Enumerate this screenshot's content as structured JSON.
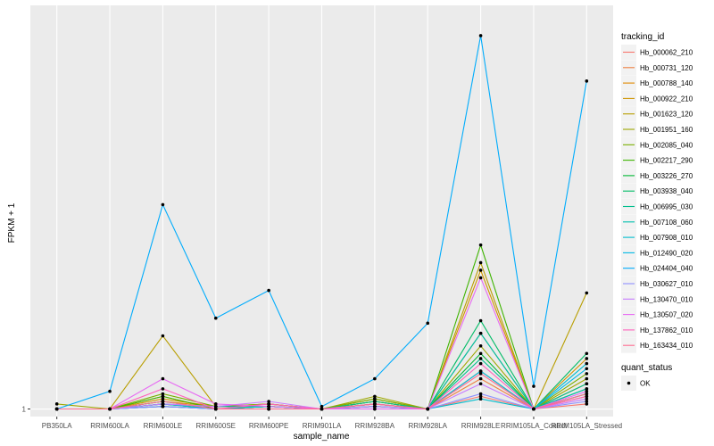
{
  "chart_data": {
    "type": "line",
    "title": "",
    "xlabel": "sample_name",
    "ylabel": "FPKM + 1",
    "categories": [
      "PB350LA",
      "RRIM600LA",
      "RRIM600LE",
      "RRIM600SE",
      "RRIM600PE",
      "RRIM901LA",
      "RRIM928BA",
      "RRIM928LA",
      "RRIM928LE",
      "RRIM105LA_Control",
      "RRIM105LA_Stressed"
    ],
    "y_tick_labels": [
      {
        "value": 1,
        "label": "1"
      }
    ],
    "ylim": [
      0.97,
      2.6
    ],
    "grid": true,
    "legend_position": "right",
    "legend_title": "tracking_id",
    "point_legend_title": "quant_status",
    "point_legend_labels": [
      "OK"
    ],
    "series": [
      {
        "name": "Hb_000062_210",
        "color": "#F8766D",
        "values": [
          1,
          1,
          1.01,
          1,
          1,
          1,
          1.01,
          1,
          1.05,
          1,
          1.02
        ]
      },
      {
        "name": "Hb_000731_120",
        "color": "#EE8043",
        "values": [
          1,
          1,
          1.02,
          1,
          1.01,
          1,
          1.02,
          1,
          1.12,
          1,
          1.05
        ]
      },
      {
        "name": "Hb_000788_140",
        "color": "#E18A00",
        "values": [
          1,
          1,
          1.03,
          1.01,
          1.02,
          1,
          1.03,
          1,
          1.15,
          1,
          1.1
        ]
      },
      {
        "name": "Hb_000922_210",
        "color": "#CF9400",
        "values": [
          1,
          1,
          1.04,
          1.01,
          1.01,
          1,
          1.03,
          1,
          1.55,
          1,
          1.2
        ]
      },
      {
        "name": "Hb_001623_120",
        "color": "#B89E00",
        "values": [
          1,
          1,
          1.29,
          1.01,
          1.02,
          1,
          1.04,
          1,
          1.58,
          1,
          1.46
        ]
      },
      {
        "name": "Hb_001951_160",
        "color": "#9DA700",
        "values": [
          1.02,
          1,
          1.05,
          1,
          1.01,
          1,
          1.05,
          1,
          1.25,
          1,
          1.12
        ]
      },
      {
        "name": "Hb_002085_040",
        "color": "#79AF00",
        "values": [
          1,
          1,
          1.06,
          1.01,
          1.02,
          1,
          1.04,
          1,
          1.3,
          1,
          1.14
        ]
      },
      {
        "name": "Hb_002217_290",
        "color": "#3EB400",
        "values": [
          1,
          1,
          1.05,
          1,
          1.01,
          1,
          1.03,
          1,
          1.65,
          1,
          1.08
        ]
      },
      {
        "name": "Hb_003226_270",
        "color": "#00B835",
        "values": [
          1,
          1,
          1.02,
          1,
          1,
          1,
          1.01,
          1,
          1.22,
          1,
          1.06
        ]
      },
      {
        "name": "Hb_003938_040",
        "color": "#00BC66",
        "values": [
          1,
          1,
          1.03,
          1,
          1.01,
          1,
          1.02,
          1,
          1.35,
          1,
          1.22
        ]
      },
      {
        "name": "Hb_006995_030",
        "color": "#00BE8D",
        "values": [
          1,
          1,
          1.02,
          1.01,
          1.01,
          1,
          1.03,
          1,
          1.2,
          1,
          1.1
        ]
      },
      {
        "name": "Hb_007108_060",
        "color": "#00BFAF",
        "values": [
          1,
          1,
          1.01,
          1,
          1,
          1,
          1.01,
          1,
          1.3,
          1,
          1.08
        ]
      },
      {
        "name": "Hb_007908_010",
        "color": "#00BDCD",
        "values": [
          1,
          1,
          1.02,
          1,
          1.01,
          1,
          1.02,
          1,
          1.04,
          1,
          1.18
        ]
      },
      {
        "name": "Hb_012490_020",
        "color": "#00B8E5",
        "values": [
          1,
          1,
          1.01,
          1,
          1,
          1,
          1.01,
          1,
          1.15,
          1,
          1.16
        ]
      },
      {
        "name": "Hb_024404_040",
        "color": "#00ACFC",
        "values": [
          1,
          1.07,
          1.81,
          1.36,
          1.47,
          1.01,
          1.12,
          1.34,
          2.48,
          1.09,
          2.3
        ]
      },
      {
        "name": "Hb_030627_010",
        "color": "#8F91FF",
        "values": [
          1,
          1,
          1.01,
          1,
          1,
          1,
          1,
          1,
          1.06,
          1,
          1.03
        ]
      },
      {
        "name": "Hb_130470_010",
        "color": "#C77CFF",
        "values": [
          1,
          1,
          1.02,
          1.01,
          1.03,
          1,
          1.01,
          1,
          1.1,
          1,
          1.04
        ]
      },
      {
        "name": "Hb_130507_020",
        "color": "#E76BF3",
        "values": [
          1,
          1,
          1.12,
          1.02,
          1.01,
          1,
          1,
          1,
          1.52,
          1,
          1.07
        ]
      },
      {
        "name": "Hb_137862_010",
        "color": "#FF62BC",
        "values": [
          1,
          1,
          1.08,
          1,
          1.02,
          1,
          1.02,
          1,
          1.18,
          1,
          1.05
        ]
      },
      {
        "name": "Hb_163434_010",
        "color": "#FF6C91",
        "values": [
          1,
          1,
          1.03,
          1,
          1,
          1,
          1.02,
          1,
          1.14,
          1,
          1.06
        ]
      }
    ]
  }
}
